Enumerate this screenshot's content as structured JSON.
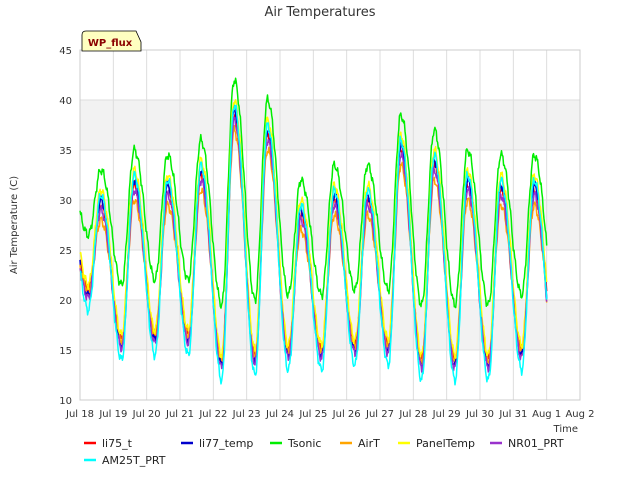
{
  "chart_data": {
    "type": "line",
    "title": "Air Temperatures",
    "xlabel": "Time",
    "ylabel": "Air Temperature (C)",
    "badge": "WP_flux",
    "ylim": [
      10,
      45
    ],
    "yticks": [
      10,
      15,
      20,
      25,
      30,
      35,
      40,
      45
    ],
    "xlim": [
      0,
      15
    ],
    "xticks": [
      {
        "v": 0,
        "label": "Jul 18"
      },
      {
        "v": 1,
        "label": "Jul 19"
      },
      {
        "v": 2,
        "label": "Jul 20"
      },
      {
        "v": 3,
        "label": "Jul 21"
      },
      {
        "v": 4,
        "label": "Jul 22"
      },
      {
        "v": 5,
        "label": "Jul 23"
      },
      {
        "v": 6,
        "label": "Jul 24"
      },
      {
        "v": 7,
        "label": "Jul 25"
      },
      {
        "v": 8,
        "label": "Jul 26"
      },
      {
        "v": 9,
        "label": "Jul 27"
      },
      {
        "v": 10,
        "label": "Jul 28"
      },
      {
        "v": 11,
        "label": "Jul 29"
      },
      {
        "v": 12,
        "label": "Jul 30"
      },
      {
        "v": 13,
        "label": "Jul 31"
      },
      {
        "v": 14,
        "label": "Aug 1"
      },
      {
        "v": 15,
        "label": "Aug 2"
      }
    ],
    "grid": true,
    "x_end": 14.0,
    "baseline": {
      "min": [
        20.5,
        15.5,
        16.0,
        16.0,
        13.5,
        14.0,
        14.5,
        14.5,
        15.0,
        15.0,
        13.5,
        13.5,
        13.5,
        14.5
      ],
      "max": [
        29.5,
        31.5,
        31.0,
        32.5,
        38.5,
        36.5,
        28.5,
        30.0,
        30.0,
        35.0,
        33.5,
        31.5,
        31.0,
        31.0
      ]
    },
    "series": [
      {
        "name": "li75_t",
        "color": "#ff0000",
        "off_min": 0.5,
        "off_max": 0.0
      },
      {
        "name": "li77_temp",
        "color": "#0000cc",
        "off_min": 0.0,
        "off_max": 0.5
      },
      {
        "name": "Tsonic",
        "color": "#00ee00",
        "off_min": 6.0,
        "off_max": 3.5
      },
      {
        "name": "AirT",
        "color": "#ffa500",
        "off_min": 0.5,
        "off_max": -1.5
      },
      {
        "name": "PanelTemp",
        "color": "#ffff00",
        "off_min": 1.0,
        "off_max": 1.5
      },
      {
        "name": "NR01_PRT",
        "color": "#9932cc",
        "off_min": -0.3,
        "off_max": -0.5
      },
      {
        "name": "AM25T_PRT",
        "color": "#00ffff",
        "off_min": -1.5,
        "off_max": 1.0
      }
    ]
  }
}
